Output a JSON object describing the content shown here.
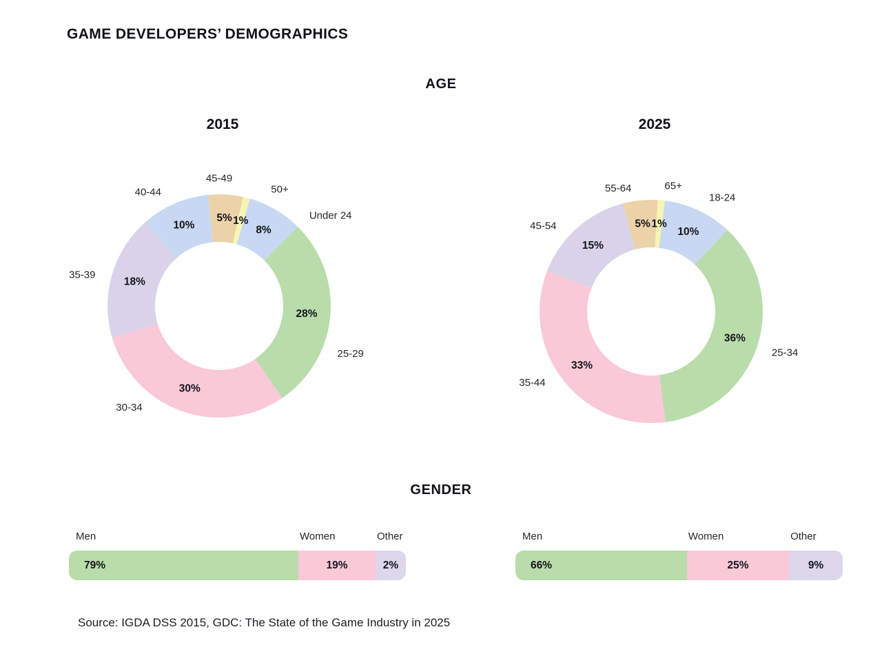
{
  "page": {
    "title": "GAME DEVELOPERS’ DEMOGRAPHICS",
    "source": "Source: IGDA DSS 2015, GDC: The State of the Game Industry in 2025"
  },
  "sections": {
    "age": "AGE",
    "gender": "GENDER"
  },
  "palette": {
    "green": "#b9dcab",
    "pink": "#f9c9d7",
    "lavender": "#d8d3e9",
    "blue": "#c8d8f2",
    "tan": "#ecd2a8",
    "yellow": "#f6f5b4",
    "text_dark": "#15141c",
    "text_label": "#26262b"
  },
  "chart_data": [
    {
      "id": "age-2015",
      "type": "pie",
      "subtype": "donut",
      "title": "2015",
      "categories": [
        "Under 24",
        "25-29",
        "30-34",
        "35-39",
        "40-44",
        "45-49",
        "50+"
      ],
      "values": [
        8,
        28,
        30,
        18,
        10,
        5,
        1
      ],
      "colors": [
        "#c8d8f2",
        "#b9dcab",
        "#f9c9d7",
        "#d8d3e9",
        "#c8d8f2",
        "#ecd2a8",
        "#f6f5b4"
      ],
      "start_angle": 16,
      "label_angles": [
        45,
        112,
        217,
        284,
        333,
        0,
        24
      ]
    },
    {
      "id": "age-2025",
      "type": "pie",
      "subtype": "donut",
      "title": "2025",
      "categories": [
        "18-24",
        "25-34",
        "35-44",
        "45-54",
        "55-64",
        "65+"
      ],
      "values": [
        10,
        36,
        33,
        15,
        5,
        1
      ],
      "colors": [
        "#c8d8f2",
        "#b9dcab",
        "#f9c9d7",
        "#d8d3e9",
        "#ecd2a8",
        "#f6f5b4"
      ],
      "start_angle": 7,
      "label_angles": [
        27,
        109,
        236,
        312,
        345,
        10
      ]
    },
    {
      "id": "gender-2015",
      "type": "bar",
      "subtype": "stacked-horizontal",
      "group": "2015",
      "categories": [
        "Men",
        "Women",
        "Other"
      ],
      "values": [
        79,
        19,
        2
      ],
      "colors": [
        "#b9dcab",
        "#f9c9d7",
        "#dcd7eb"
      ],
      "display_widths": [
        68.1,
        22.9,
        9.0
      ]
    },
    {
      "id": "gender-2025",
      "type": "bar",
      "subtype": "stacked-horizontal",
      "group": "2025",
      "categories": [
        "Men",
        "Women",
        "Other"
      ],
      "values": [
        66,
        25,
        9
      ],
      "colors": [
        "#b9dcab",
        "#f9c9d7",
        "#dcd7eb"
      ],
      "display_widths": [
        52.4,
        31.2,
        16.4
      ]
    }
  ]
}
